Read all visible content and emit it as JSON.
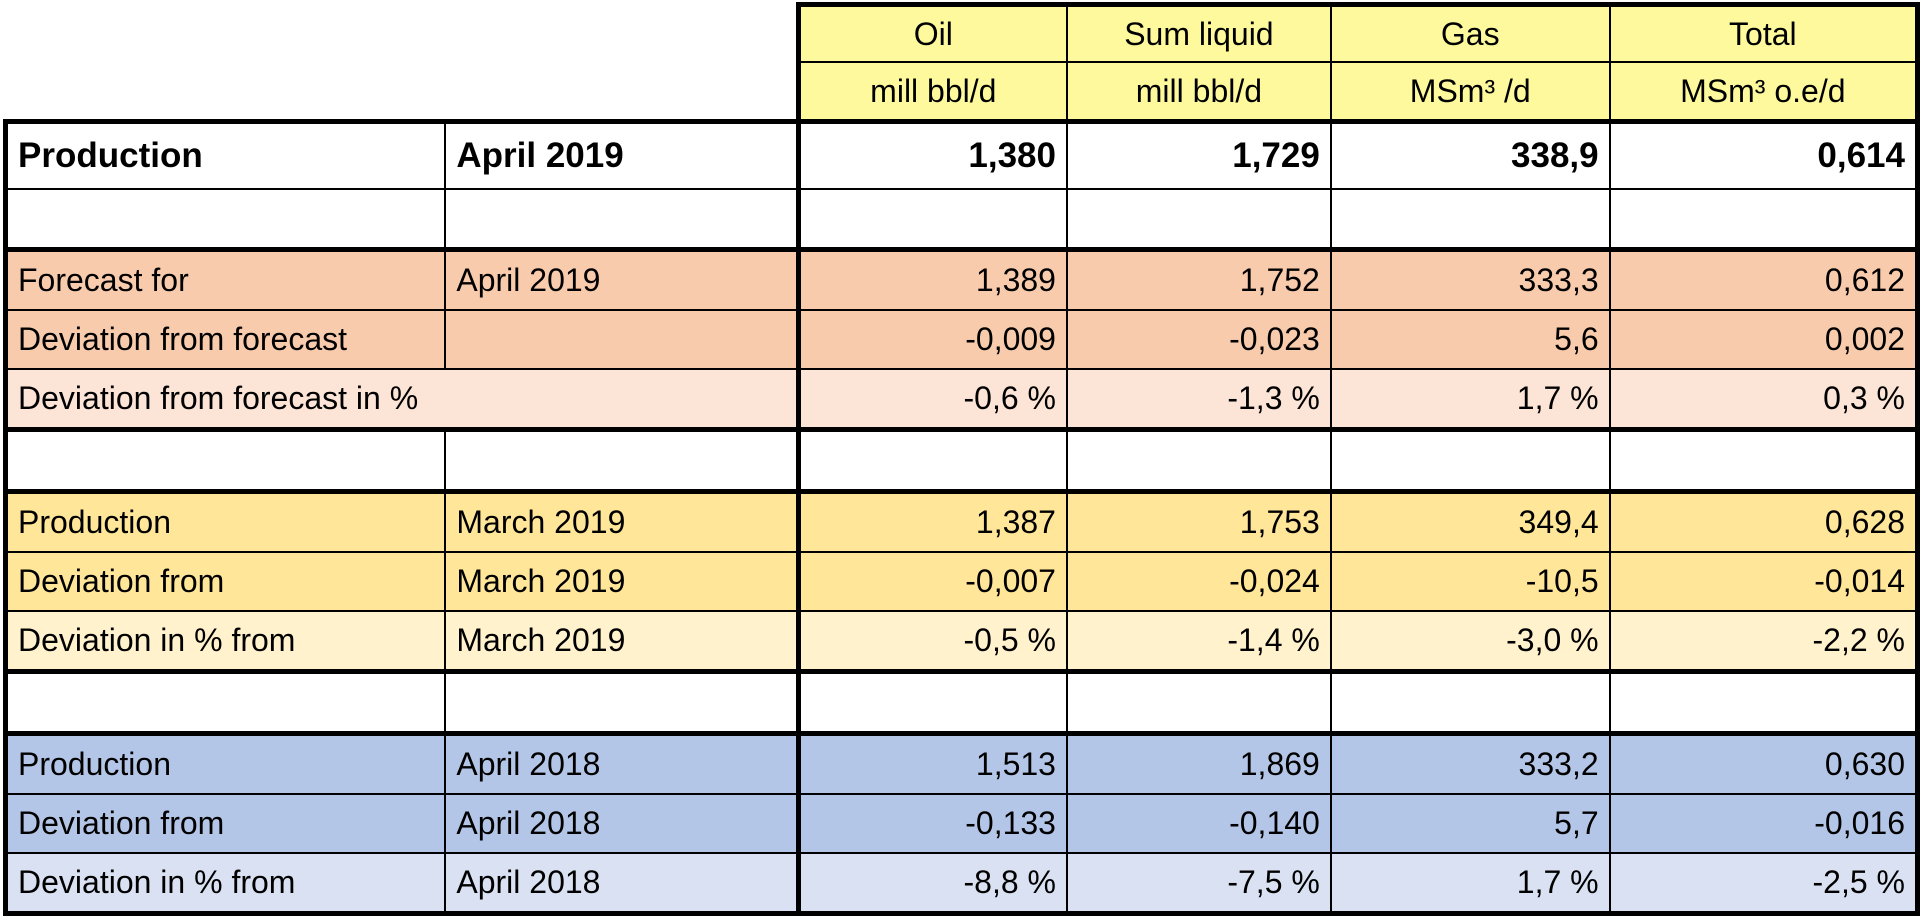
{
  "header": {
    "columns": [
      {
        "name": "Oil",
        "unit": "mill bbl/d"
      },
      {
        "name": "Sum liquid",
        "unit": "mill bbl/d"
      },
      {
        "name": "Gas",
        "unit": "MSm³ /d"
      },
      {
        "name": "Total",
        "unit": "MSm³ o.e/d"
      }
    ]
  },
  "production": {
    "label": "Production",
    "period": "April 2019",
    "values": [
      "1,380",
      "1,729",
      "338,9",
      "0,614"
    ]
  },
  "forecast": {
    "rows": [
      {
        "label": "Forecast for",
        "period": "April 2019",
        "values": [
          "1,389",
          "1,752",
          "333,3",
          "0,612"
        ]
      },
      {
        "label": "Deviation from forecast",
        "period": "",
        "values": [
          "-0,009",
          "-0,023",
          "5,6",
          "0,002"
        ]
      },
      {
        "label": "Deviation from forecast in %",
        "values": [
          "-0,6 %",
          "-1,3 %",
          "1,7 %",
          "0,3 %"
        ]
      }
    ]
  },
  "previous_month": {
    "rows": [
      {
        "label": "Production",
        "period": "March 2019",
        "values": [
          "1,387",
          "1,753",
          "349,4",
          "0,628"
        ]
      },
      {
        "label": "Deviation from",
        "period": "March 2019",
        "values": [
          "-0,007",
          "-0,024",
          "-10,5",
          "-0,014"
        ]
      },
      {
        "label": "Deviation  in % from",
        "period": "March 2019",
        "values": [
          "-0,5 %",
          "-1,4 %",
          "-3,0 %",
          "-2,2 %"
        ]
      }
    ]
  },
  "previous_year": {
    "rows": [
      {
        "label": "Production",
        "period": "April 2018",
        "values": [
          "1,513",
          "1,869",
          "333,2",
          "0,630"
        ]
      },
      {
        "label": "Deviation from",
        "period": "April 2018",
        "values": [
          "-0,133",
          "-0,140",
          "5,7",
          "-0,016"
        ]
      },
      {
        "label": "Deviation  in % from",
        "period": "April 2018",
        "values": [
          "-8,8 %",
          "-7,5 %",
          "1,7 %",
          "-2,5 %"
        ]
      }
    ]
  },
  "colors": {
    "header": "#fdf99c",
    "forecast_dark": "#f8cbad",
    "forecast_light": "#fce4d6",
    "month_dark": "#ffe699",
    "month_light": "#fff2cc",
    "year_dark": "#b4c6e7",
    "year_light": "#d9e1f2"
  }
}
